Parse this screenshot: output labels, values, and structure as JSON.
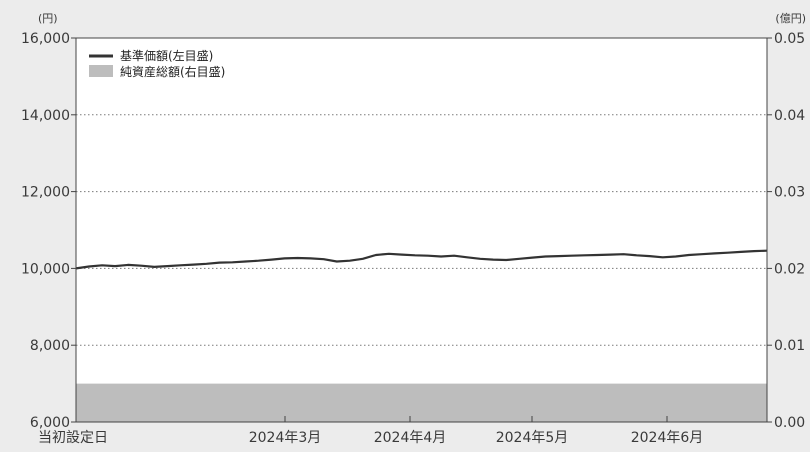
{
  "chart_data": {
    "type": "line",
    "x_labels": [
      "当初設定日",
      "2024年3月",
      "2024年4月",
      "2024年5月",
      "2024年6月"
    ],
    "left_axis": {
      "unit": "(円)",
      "ylim": [
        6000,
        16000
      ],
      "tick_values": [
        6000,
        8000,
        10000,
        12000,
        14000,
        16000
      ],
      "tick_labels": [
        "6,000",
        "8,000",
        "10,000",
        "12,000",
        "14,000",
        "16,000"
      ]
    },
    "right_axis": {
      "unit": "(億円)",
      "ylim": [
        0.0,
        0.05
      ],
      "tick_values": [
        0.0,
        0.01,
        0.02,
        0.03,
        0.04,
        0.05
      ],
      "tick_labels": [
        "0.00",
        "0.01",
        "0.02",
        "0.03",
        "0.04",
        "0.05"
      ]
    },
    "grid": "horizontal dotted",
    "legend_position": "top-left",
    "series": [
      {
        "name": "基準価額(左目盛)",
        "type": "line",
        "axis": "left",
        "color": "#333333",
        "values": [
          10000,
          10050,
          10080,
          10060,
          10090,
          10070,
          10040,
          10060,
          10080,
          10100,
          10120,
          10150,
          10160,
          10180,
          10200,
          10230,
          10260,
          10270,
          10260,
          10240,
          10180,
          10200,
          10250,
          10350,
          10380,
          10360,
          10340,
          10330,
          10310,
          10330,
          10290,
          10250,
          10230,
          10220,
          10250,
          10280,
          10310,
          10320,
          10330,
          10340,
          10350,
          10360,
          10370,
          10340,
          10320,
          10290,
          10310,
          10350,
          10370,
          10390,
          10410,
          10430,
          10450,
          10460
        ]
      },
      {
        "name": "純資産総額(右目盛)",
        "type": "area",
        "axis": "right",
        "color": "#bdbdbd",
        "values": [
          0.005,
          0.005,
          0.005,
          0.005,
          0.005,
          0.005,
          0.005,
          0.005,
          0.005,
          0.005,
          0.005,
          0.005,
          0.005,
          0.005,
          0.005,
          0.005,
          0.005,
          0.005,
          0.005,
          0.005,
          0.005,
          0.005,
          0.005,
          0.005,
          0.005,
          0.005,
          0.005,
          0.005,
          0.005,
          0.005,
          0.005,
          0.005,
          0.005,
          0.005,
          0.005,
          0.005,
          0.005,
          0.005,
          0.005,
          0.005,
          0.005,
          0.005,
          0.005,
          0.005,
          0.005,
          0.005,
          0.005,
          0.005,
          0.005,
          0.005,
          0.005,
          0.005,
          0.005,
          0.005
        ]
      }
    ]
  }
}
